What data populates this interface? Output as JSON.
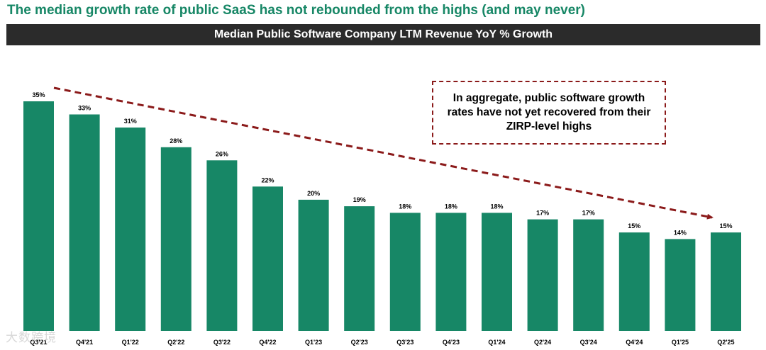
{
  "headline": "The median growth rate of public SaaS has not rebounded from the highs (and may never)",
  "title": "Median Public Software Company LTM Revenue YoY % Growth",
  "callout": "In aggregate, public software growth rates have not yet recovered from their ZIRP-level highs",
  "watermark": "大数跨境",
  "colors": {
    "bar": "#178766",
    "headline": "#178766",
    "titlebar": "#2b2b2b",
    "arrow": "#8b1a1a"
  },
  "chart_data": {
    "type": "bar",
    "categories": [
      "Q3'21",
      "Q4'21",
      "Q1'22",
      "Q2'22",
      "Q3'22",
      "Q4'22",
      "Q1'23",
      "Q2'23",
      "Q3'23",
      "Q4'23",
      "Q1'24",
      "Q2'24",
      "Q3'24",
      "Q4'24",
      "Q1'25",
      "Q2'25"
    ],
    "values": [
      35,
      33,
      31,
      28,
      26,
      22,
      20,
      19,
      18,
      18,
      18,
      17,
      17,
      15,
      14,
      15
    ],
    "data_labels": [
      "35%",
      "33%",
      "31%",
      "28%",
      "26%",
      "22%",
      "20%",
      "19%",
      "18%",
      "18%",
      "18%",
      "17%",
      "17%",
      "15%",
      "14%",
      "15%"
    ],
    "title": "Median Public Software Company LTM Revenue YoY % Growth",
    "ylim": [
      0,
      35
    ],
    "grid": false,
    "trend_arrow": {
      "from_category": "Q3'21",
      "to_category": "Q2'25",
      "style": "dashed"
    }
  }
}
